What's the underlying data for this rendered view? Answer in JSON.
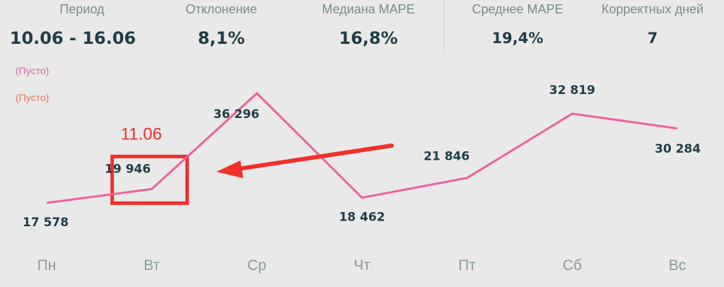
{
  "kpis": [
    {
      "label": "Период",
      "value": "10.06 - 16.06"
    },
    {
      "label": "Отклонение",
      "value": "8,1%"
    },
    {
      "label": "Медиана MAPE",
      "value": "16,8%"
    },
    {
      "label": "Среднее MAPE",
      "value": "19,4%"
    },
    {
      "label": "Корректных дней",
      "value": "7"
    }
  ],
  "legend": [
    {
      "label": "(Пусто)",
      "color": "#e8609a"
    },
    {
      "label": "(Пусто)",
      "color": "#e07a5a"
    }
  ],
  "chart_data": {
    "type": "line",
    "categories": [
      "Пн",
      "Вт",
      "Ср",
      "Чт",
      "Пт",
      "Сб",
      "Вс"
    ],
    "values": [
      17578,
      19946,
      36296,
      18462,
      21846,
      32819,
      30284
    ],
    "value_labels": [
      "17 578",
      "19 946",
      "36 296",
      "18 462",
      "21 846",
      "32 819",
      "30 284"
    ],
    "line_color": "#f0609a",
    "ylim": [
      10000,
      40000
    ],
    "grid": false
  },
  "annotation": {
    "text": "11.06",
    "color": "#f0302a",
    "highlight_category": "Вт"
  }
}
